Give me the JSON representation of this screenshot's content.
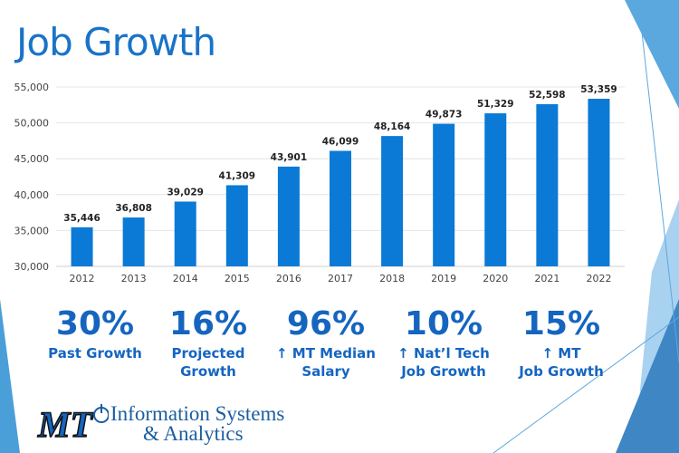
{
  "title": "Job Growth",
  "chart_data": {
    "type": "bar",
    "categories": [
      "2012",
      "2013",
      "2014",
      "2015",
      "2016",
      "2017",
      "2018",
      "2019",
      "2020",
      "2021",
      "2022"
    ],
    "values": [
      35446,
      36808,
      39029,
      41309,
      43901,
      46099,
      48164,
      49873,
      51329,
      52598,
      53359
    ],
    "value_labels": [
      "35,446",
      "36,808",
      "39,029",
      "41,309",
      "43,901",
      "46,099",
      "48,164",
      "49,873",
      "51,329",
      "52,598",
      "53,359"
    ],
    "ylim": [
      30000,
      55000
    ],
    "yticks": [
      30000,
      35000,
      40000,
      45000,
      50000,
      55000
    ],
    "ytick_labels": [
      "30,000",
      "35,000",
      "40,000",
      "45,000",
      "50,000",
      "55,000"
    ],
    "grid": true,
    "bar_color": "#0a7ad6"
  },
  "stats": [
    {
      "value": "30%",
      "label1": "Past Growth",
      "label2": ""
    },
    {
      "value": "16%",
      "label1": "Projected",
      "label2": "Growth"
    },
    {
      "value": "96%",
      "label1": "↑ MT Median",
      "label2": "Salary"
    },
    {
      "value": "10%",
      "label1": "↑ Nat’l Tech",
      "label2": "Job Growth"
    },
    {
      "value": "15%",
      "label1": "↑ MT",
      "label2": "Job Growth"
    }
  ],
  "logo": {
    "mark": "MT",
    "line1": "Information Systems",
    "line2": "& Analytics"
  }
}
